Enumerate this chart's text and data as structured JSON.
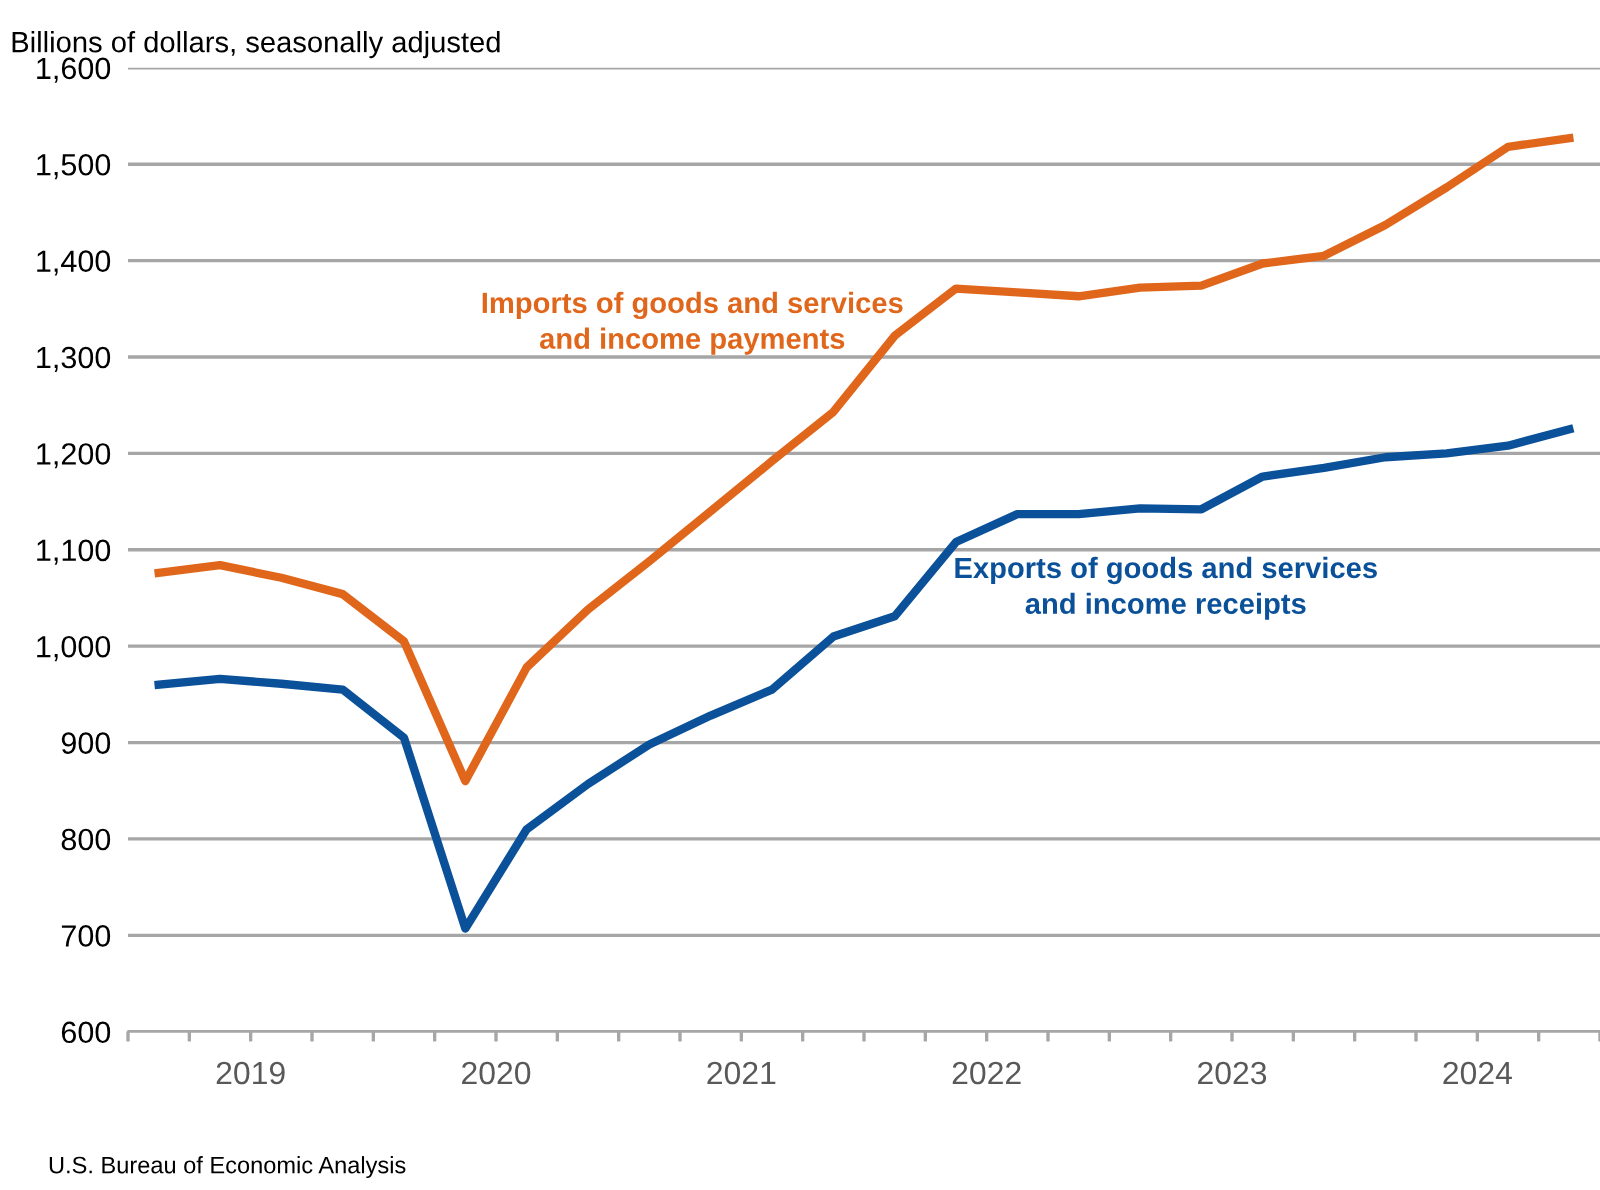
{
  "chart_data": {
    "type": "line",
    "ylabel": "Billions of dollars, seasonally adjusted",
    "annotations": [
      "U.S. Bureau of Economic Analysis"
    ],
    "x": [
      2019.125,
      2019.375,
      2019.625,
      2019.875,
      2020.125,
      2020.375,
      2020.625,
      2020.875,
      2021.125,
      2021.375,
      2021.625,
      2021.875,
      2022.125,
      2022.375,
      2022.625,
      2022.875,
      2023.125,
      2023.375,
      2023.625,
      2023.875,
      2024.125,
      2024.375,
      2024.625,
      2024.875
    ],
    "series": [
      {
        "name": "Imports of goods and services\nand income payments",
        "color": "#e0661b",
        "values": [
          1076,
          1084,
          1071,
          1054,
          1005,
          860,
          978,
          1038,
          1088,
          1140,
          1192,
          1243,
          1322,
          1371,
          1367,
          1363,
          1372,
          1374,
          1397,
          1405,
          1437,
          1476,
          1518,
          1527
        ]
      },
      {
        "name": "Exports of goods and services\nand income receipts",
        "color": "#0b519a",
        "values": [
          960,
          966,
          961,
          955,
          905,
          707,
          810,
          857,
          898,
          928,
          955,
          1010,
          1031,
          1108,
          1137,
          1137,
          1143,
          1142,
          1176,
          1185,
          1196,
          1200,
          1208,
          1225
        ]
      }
    ],
    "xlim": [
      2019,
      2025
    ],
    "xticks": [
      {
        "value": 2019,
        "label": null
      },
      {
        "value": 2019.25,
        "label": null
      },
      {
        "value": 2019.5,
        "label": "2019"
      },
      {
        "value": 2019.75,
        "label": null
      },
      {
        "value": 2020,
        "label": null
      },
      {
        "value": 2020.25,
        "label": null
      },
      {
        "value": 2020.5,
        "label": "2020"
      },
      {
        "value": 2020.75,
        "label": null
      },
      {
        "value": 2021,
        "label": null
      },
      {
        "value": 2021.25,
        "label": null
      },
      {
        "value": 2021.5,
        "label": "2021"
      },
      {
        "value": 2021.75,
        "label": null
      },
      {
        "value": 2022,
        "label": null
      },
      {
        "value": 2022.25,
        "label": null
      },
      {
        "value": 2022.5,
        "label": "2022"
      },
      {
        "value": 2022.75,
        "label": null
      },
      {
        "value": 2023,
        "label": null
      },
      {
        "value": 2023.25,
        "label": null
      },
      {
        "value": 2023.5,
        "label": "2023"
      },
      {
        "value": 2023.75,
        "label": null
      },
      {
        "value": 2024,
        "label": null
      },
      {
        "value": 2024.25,
        "label": null
      },
      {
        "value": 2024.5,
        "label": "2024"
      },
      {
        "value": 2024.75,
        "label": null
      },
      {
        "value": 2025,
        "label": null
      }
    ],
    "ylim": [
      600,
      1600
    ],
    "yticks": [
      600,
      700,
      800,
      900,
      {
        "value": 1000,
        "label": "1,000"
      },
      {
        "value": 1100,
        "label": "1,100"
      },
      {
        "value": 1200,
        "label": "1,200"
      },
      {
        "value": 1300,
        "label": "1,300"
      },
      {
        "value": 1400,
        "label": "1,400"
      },
      {
        "value": 1500,
        "label": "1,500"
      },
      {
        "value": 1600,
        "label": "1,600"
      }
    ],
    "grid": "y",
    "marker": "none",
    "line_style": "solid",
    "legend": false
  }
}
